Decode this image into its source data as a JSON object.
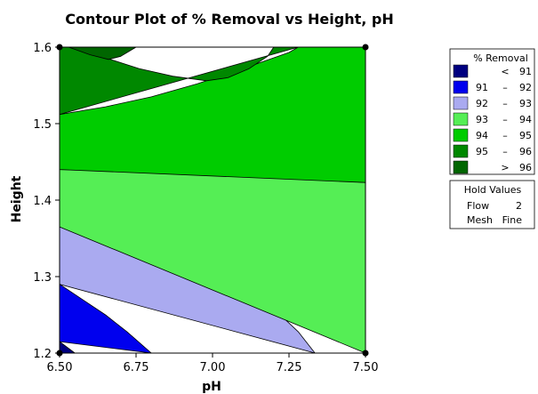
{
  "chart_data": {
    "type": "contour",
    "title": "Contour Plot of % Removal vs Height, pH",
    "xlabel": "pH",
    "ylabel": "Height",
    "xlim": [
      6.5,
      7.5
    ],
    "ylim": [
      1.2,
      1.6
    ],
    "x_ticks": [
      "6.50",
      "6.75",
      "7.00",
      "7.25",
      "7.50"
    ],
    "y_ticks": [
      "1.2",
      "1.3",
      "1.4",
      "1.5",
      "1.6"
    ],
    "regions": [
      {
        "level": "< 91",
        "color": "#000080",
        "boundary": [
          [
            6.5,
            1.2
          ],
          [
            6.5,
            1.215
          ],
          [
            6.55,
            1.2
          ]
        ]
      },
      {
        "level": "91 - 92",
        "color": "#0000ee",
        "boundary": [
          [
            6.5,
            1.215
          ],
          [
            6.5,
            1.29
          ],
          [
            6.575,
            1.27
          ],
          [
            6.65,
            1.25
          ],
          [
            6.72,
            1.228
          ],
          [
            6.8,
            1.2
          ]
        ]
      },
      {
        "level": "92 - 93",
        "color": "#aaaaf0",
        "boundary": [
          [
            6.5,
            1.29
          ],
          [
            6.5,
            1.365
          ],
          [
            6.6,
            1.355
          ],
          [
            6.75,
            1.34
          ],
          [
            6.9,
            1.322
          ],
          [
            7.0,
            1.306
          ],
          [
            7.1,
            1.286
          ],
          [
            7.2,
            1.258
          ],
          [
            7.28,
            1.228
          ],
          [
            7.335,
            1.2
          ]
        ]
      },
      {
        "level": "93 - 94",
        "color": "#55ee55",
        "boundary": [
          [
            6.5,
            1.365
          ],
          [
            6.5,
            1.44
          ],
          [
            6.75,
            1.438
          ],
          [
            7.0,
            1.435
          ],
          [
            7.25,
            1.43
          ],
          [
            7.5,
            1.423
          ],
          [
            7.5,
            1.2
          ]
        ]
      },
      {
        "level": "94 - 95",
        "color": "#00cc00",
        "boundary": [
          [
            6.5,
            1.44
          ],
          [
            6.5,
            1.512
          ],
          [
            6.65,
            1.522
          ],
          [
            6.8,
            1.535
          ],
          [
            6.95,
            1.552
          ],
          [
            7.1,
            1.572
          ],
          [
            7.25,
            1.593
          ],
          [
            7.28,
            1.6
          ],
          [
            7.5,
            1.6
          ],
          [
            7.5,
            1.423
          ]
        ]
      },
      {
        "level": "95 - 96",
        "color": "#008800",
        "boundary": [
          [
            6.5,
            1.512
          ],
          [
            6.5,
            1.6
          ],
          [
            6.53,
            1.6
          ],
          [
            6.65,
            1.586
          ],
          [
            6.76,
            1.572
          ],
          [
            6.87,
            1.562
          ],
          [
            6.98,
            1.556
          ],
          [
            7.05,
            1.56
          ],
          [
            7.12,
            1.572
          ],
          [
            7.18,
            1.588
          ],
          [
            7.2,
            1.6
          ],
          [
            7.28,
            1.6
          ]
        ]
      },
      {
        "level": "> 96",
        "color": "#006600",
        "boundary": [
          [
            6.5,
            1.6
          ],
          [
            6.53,
            1.6
          ],
          [
            6.6,
            1.59
          ],
          [
            6.66,
            1.584
          ],
          [
            6.7,
            1.588
          ],
          [
            6.75,
            1.6
          ]
        ]
      }
    ],
    "legend": {
      "title": "% Removal",
      "entries": [
        {
          "color": "#000080",
          "lo": "",
          "dash": "<",
          "hi": "91"
        },
        {
          "color": "#0000ee",
          "lo": "91",
          "dash": "–",
          "hi": "92"
        },
        {
          "color": "#aaaaf0",
          "lo": "92",
          "dash": "–",
          "hi": "93"
        },
        {
          "color": "#55ee55",
          "lo": "93",
          "dash": "–",
          "hi": "94"
        },
        {
          "color": "#00cc00",
          "lo": "94",
          "dash": "–",
          "hi": "95"
        },
        {
          "color": "#008800",
          "lo": "95",
          "dash": "–",
          "hi": "96"
        },
        {
          "color": "#006600",
          "lo": "",
          "dash": ">",
          "hi": "96"
        }
      ]
    },
    "hold_values": {
      "title": "Hold Values",
      "rows": [
        {
          "name": "Flow",
          "value": "2"
        },
        {
          "name": "Mesh",
          "value": "Fine"
        }
      ]
    }
  }
}
